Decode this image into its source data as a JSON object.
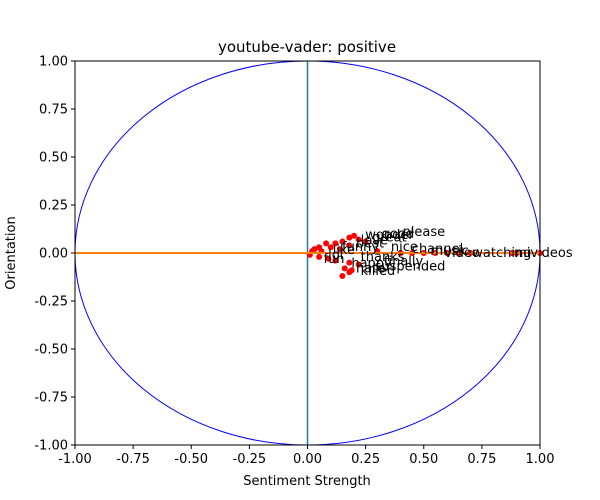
{
  "chart_data": {
    "type": "scatter",
    "title": "youtube-vader: positive",
    "xlabel": "Sentiment Strength",
    "ylabel": "Orientation",
    "xlim": [
      -1.0,
      1.0
    ],
    "ylim": [
      -1.0,
      1.0
    ],
    "x_ticks": [
      "-1.00",
      "-0.75",
      "-0.50",
      "-0.25",
      "0.00",
      "0.25",
      "0.50",
      "0.75",
      "1.00"
    ],
    "y_ticks": [
      "-1.00",
      "-0.75",
      "-0.50",
      "-0.25",
      "0.00",
      "0.25",
      "0.50",
      "0.75",
      "1.00"
    ],
    "grid": false,
    "colors": {
      "circle": "#0000ff",
      "vertical_line": "#1f77b4",
      "horizontal_line": "#ff7f0e",
      "points": "#ff0000"
    },
    "points": [
      {
        "x": 0.2,
        "y": 0.09
      },
      {
        "x": 0.18,
        "y": 0.08
      },
      {
        "x": 0.22,
        "y": 0.07
      },
      {
        "x": 0.15,
        "y": 0.06
      },
      {
        "x": 0.25,
        "y": 0.06
      },
      {
        "x": 0.08,
        "y": 0.05
      },
      {
        "x": 0.12,
        "y": 0.05
      },
      {
        "x": 0.18,
        "y": 0.04
      },
      {
        "x": 0.05,
        "y": 0.03
      },
      {
        "x": 0.1,
        "y": 0.03
      },
      {
        "x": 0.14,
        "y": 0.02
      },
      {
        "x": 0.03,
        "y": 0.02
      },
      {
        "x": 0.02,
        "y": 0.01
      },
      {
        "x": 0.06,
        "y": 0.01
      },
      {
        "x": 0.3,
        "y": 0.01
      },
      {
        "x": 0.4,
        "y": 0.0
      },
      {
        "x": 0.45,
        "y": 0.0
      },
      {
        "x": 0.5,
        "y": 0.0
      },
      {
        "x": 0.55,
        "y": 0.0
      },
      {
        "x": 0.6,
        "y": 0.0
      },
      {
        "x": 0.65,
        "y": 0.0
      },
      {
        "x": 0.7,
        "y": 0.0
      },
      {
        "x": 0.88,
        "y": 0.0
      },
      {
        "x": 0.9,
        "y": 0.0
      },
      {
        "x": 1.0,
        "y": 0.0
      },
      {
        "x": 0.01,
        "y": -0.01
      },
      {
        "x": 0.05,
        "y": -0.02
      },
      {
        "x": 0.09,
        "y": -0.03
      },
      {
        "x": 0.12,
        "y": -0.04
      },
      {
        "x": 0.18,
        "y": -0.05
      },
      {
        "x": 0.22,
        "y": -0.06
      },
      {
        "x": 0.16,
        "y": -0.08
      },
      {
        "x": 0.19,
        "y": -0.09
      },
      {
        "x": 0.18,
        "y": -0.1
      },
      {
        "x": 0.15,
        "y": -0.12
      }
    ],
    "labels": [
      {
        "text": "please",
        "x": 0.4,
        "y": 0.11
      },
      {
        "text": "good",
        "x": 0.31,
        "y": 0.1
      },
      {
        "text": "wonder",
        "x": 0.24,
        "y": 0.095
      },
      {
        "text": "great",
        "x": 0.27,
        "y": 0.08
      },
      {
        "text": "love",
        "x": 0.22,
        "y": 0.065
      },
      {
        "text": "best",
        "x": 0.2,
        "y": 0.05
      },
      {
        "text": "funny",
        "x": 0.14,
        "y": 0.03
      },
      {
        "text": "like",
        "x": 0.1,
        "y": 0.015
      },
      {
        "text": "nice",
        "x": 0.35,
        "y": 0.03
      },
      {
        "text": "channel",
        "x": 0.44,
        "y": 0.02
      },
      {
        "text": "music",
        "x": 0.52,
        "y": 0.01
      },
      {
        "text": "watching",
        "x": 0.7,
        "y": 0.0
      },
      {
        "text": "video",
        "x": 0.58,
        "y": 0.0
      },
      {
        "text": "videos",
        "x": 0.95,
        "y": 0.0
      },
      {
        "text": "mi",
        "x": 0.88,
        "y": 0.0
      },
      {
        "text": "lol",
        "x": 0.08,
        "y": -0.01
      },
      {
        "text": "thanks",
        "x": 0.22,
        "y": -0.02
      },
      {
        "text": "fun",
        "x": 0.06,
        "y": -0.03
      },
      {
        "text": "finally",
        "x": 0.32,
        "y": -0.045
      },
      {
        "text": "happy",
        "x": 0.18,
        "y": -0.055
      },
      {
        "text": "suspended",
        "x": 0.28,
        "y": -0.07
      },
      {
        "text": "hate",
        "x": 0.2,
        "y": -0.08
      },
      {
        "text": "killed",
        "x": 0.22,
        "y": -0.095
      }
    ]
  }
}
